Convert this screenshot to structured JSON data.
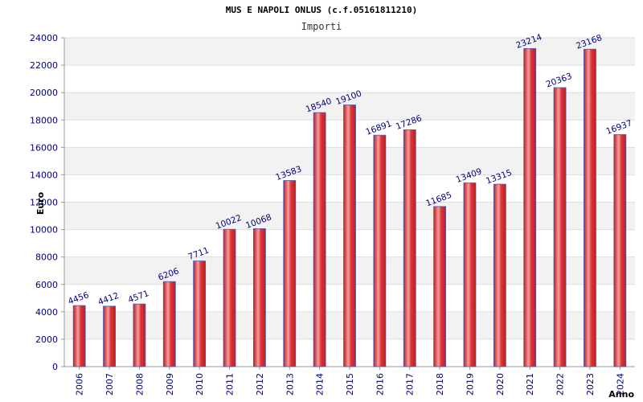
{
  "chart_data": {
    "type": "bar",
    "title": "MUS E NAPOLI ONLUS (c.f.05161811210)",
    "subtitle": "Importi",
    "xlabel": "Anno",
    "ylabel": "Euro",
    "categories": [
      "2006",
      "2007",
      "2008",
      "2009",
      "2010",
      "2011",
      "2012",
      "2013",
      "2014",
      "2015",
      "2016",
      "2017",
      "2018",
      "2019",
      "2020",
      "2021",
      "2022",
      "2023",
      "2024"
    ],
    "series": [
      {
        "values": [
          4456,
          4412,
          4571,
          6206,
          7711,
          10022,
          10068,
          13583,
          18540,
          19100,
          16891,
          17286,
          11685,
          13409,
          13315,
          23214,
          20363,
          23168,
          16937
        ]
      }
    ],
    "ylim": [
      0,
      24000
    ],
    "yticks": [
      0,
      2000,
      4000,
      6000,
      8000,
      10000,
      12000,
      14000,
      16000,
      18000,
      20000,
      22000,
      24000
    ],
    "grid": true,
    "colors": {
      "bar": "#e0363a",
      "bar_highlight": "#f6a0a0",
      "bar_edge": "#4a5ab0",
      "label": "#000080",
      "tick": "#000080",
      "grid": "#dddddd",
      "band": "#f2f2f2"
    }
  }
}
